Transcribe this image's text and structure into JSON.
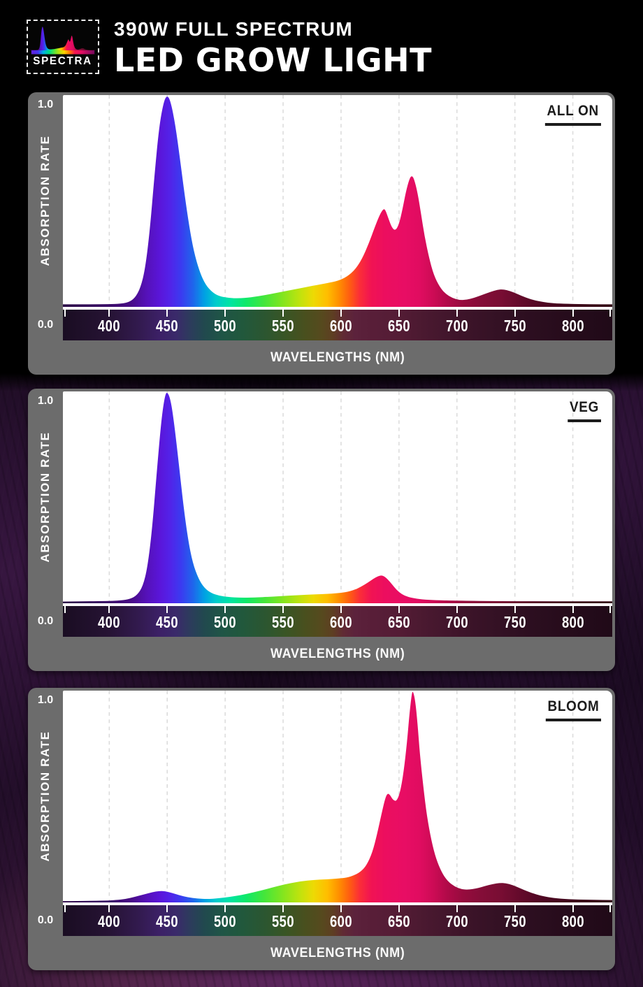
{
  "header": {
    "logo_text": "SPECTRA",
    "title_line1": "390W FULL SPECTRUM",
    "title_line2": "LED GROW LIGHT"
  },
  "axis": {
    "y_label": "ABSORPTION RATE",
    "y_max": "1.0",
    "y_min": "0.0",
    "x_label": "WAVELENGTHS (NM)",
    "x_ticks": [
      400,
      450,
      500,
      550,
      600,
      650,
      700,
      750,
      800
    ],
    "edge_ticks_nm": [
      362,
      832
    ],
    "x_range_nm": [
      360,
      834
    ]
  },
  "colors": {
    "panel_gray": "#6C6C6C",
    "plot_bg": "#FFFFFF",
    "grid_color": "#DADADA",
    "label_dark": "#1C1C1C",
    "text_white": "#FFFFFF",
    "spectrum_gradient": [
      [
        360,
        "#2B0846"
      ],
      [
        400,
        "#3A0A68"
      ],
      [
        418,
        "#470C84"
      ],
      [
        432,
        "#5511B8"
      ],
      [
        444,
        "#5A16DA"
      ],
      [
        452,
        "#5322E8"
      ],
      [
        462,
        "#3B3BF0"
      ],
      [
        472,
        "#2064EC"
      ],
      [
        482,
        "#00A0E4"
      ],
      [
        492,
        "#00CCCC"
      ],
      [
        504,
        "#00E4A4"
      ],
      [
        518,
        "#0FE969"
      ],
      [
        534,
        "#45E63A"
      ],
      [
        550,
        "#84E51E"
      ],
      [
        564,
        "#BEE30E"
      ],
      [
        576,
        "#EDDA04"
      ],
      [
        588,
        "#FFBE00"
      ],
      [
        598,
        "#FF9000"
      ],
      [
        607,
        "#FF5F10"
      ],
      [
        616,
        "#FB2E38"
      ],
      [
        626,
        "#F11353"
      ],
      [
        638,
        "#EC0E5F"
      ],
      [
        655,
        "#E80D64"
      ],
      [
        668,
        "#E00C60"
      ],
      [
        680,
        "#CC0B55"
      ],
      [
        692,
        "#B00A48"
      ],
      [
        705,
        "#970B3E"
      ],
      [
        720,
        "#850D38"
      ],
      [
        738,
        "#780D33"
      ],
      [
        756,
        "#620A2A"
      ],
      [
        775,
        "#4E0722"
      ],
      [
        800,
        "#3E061A"
      ],
      [
        834,
        "#330514"
      ]
    ],
    "band_gradient": [
      [
        360,
        "#1A0D22"
      ],
      [
        400,
        "#261334"
      ],
      [
        425,
        "#321A4E"
      ],
      [
        443,
        "#3C2066"
      ],
      [
        458,
        "#3A2A6A"
      ],
      [
        470,
        "#2C3C5C"
      ],
      [
        482,
        "#21494E"
      ],
      [
        497,
        "#1F5546"
      ],
      [
        515,
        "#21583C"
      ],
      [
        535,
        "#2C5630"
      ],
      [
        553,
        "#3A5524"
      ],
      [
        570,
        "#4A4F1E"
      ],
      [
        583,
        "#564A1E"
      ],
      [
        593,
        "#5E3E22"
      ],
      [
        602,
        "#602A34"
      ],
      [
        612,
        "#5C223C"
      ],
      [
        628,
        "#581E38"
      ],
      [
        650,
        "#541C35"
      ],
      [
        672,
        "#4A1930"
      ],
      [
        698,
        "#40152B"
      ],
      [
        725,
        "#371226"
      ],
      [
        755,
        "#2E0F21"
      ],
      [
        790,
        "#270C1C"
      ],
      [
        834,
        "#200A18"
      ]
    ],
    "logo_bar_gradient": [
      [
        0,
        "#6A1BD8"
      ],
      [
        0.12,
        "#4433EE"
      ],
      [
        0.2,
        "#00AEE8"
      ],
      [
        0.3,
        "#00E07A"
      ],
      [
        0.42,
        "#9CE414"
      ],
      [
        0.52,
        "#FFD400"
      ],
      [
        0.6,
        "#FF7A00"
      ],
      [
        0.68,
        "#F8164E"
      ],
      [
        0.78,
        "#E40E62"
      ],
      [
        0.88,
        "#AA0C60"
      ],
      [
        1,
        "#6E0A5E"
      ]
    ]
  },
  "chart_data": [
    {
      "type": "area",
      "mode_label": "ALL ON",
      "xlabel": "WAVELENGTHS (NM)",
      "ylabel": "ABSORPTION RATE",
      "x_unit": "nm",
      "xlim": [
        360,
        834
      ],
      "ylim": [
        0,
        1
      ],
      "x_ticks": [
        400,
        450,
        500,
        550,
        600,
        650,
        700,
        750,
        800
      ],
      "points": [
        [
          360,
          0.012
        ],
        [
          395,
          0.012
        ],
        [
          408,
          0.014
        ],
        [
          416,
          0.02
        ],
        [
          422,
          0.04
        ],
        [
          427,
          0.09
        ],
        [
          431,
          0.18
        ],
        [
          435,
          0.36
        ],
        [
          439,
          0.62
        ],
        [
          443,
          0.85
        ],
        [
          447,
          0.97
        ],
        [
          450,
          1.0
        ],
        [
          453,
          0.97
        ],
        [
          457,
          0.86
        ],
        [
          461,
          0.7
        ],
        [
          465,
          0.53
        ],
        [
          469,
          0.38
        ],
        [
          473,
          0.26
        ],
        [
          478,
          0.165
        ],
        [
          483,
          0.105
        ],
        [
          489,
          0.068
        ],
        [
          495,
          0.05
        ],
        [
          503,
          0.042
        ],
        [
          512,
          0.04
        ],
        [
          522,
          0.045
        ],
        [
          535,
          0.056
        ],
        [
          548,
          0.07
        ],
        [
          562,
          0.085
        ],
        [
          576,
          0.1
        ],
        [
          588,
          0.112
        ],
        [
          597,
          0.122
        ],
        [
          605,
          0.142
        ],
        [
          612,
          0.175
        ],
        [
          618,
          0.225
        ],
        [
          624,
          0.3
        ],
        [
          629,
          0.375
        ],
        [
          633,
          0.43
        ],
        [
          636,
          0.46
        ],
        [
          638,
          0.462
        ],
        [
          641,
          0.415
        ],
        [
          644,
          0.372
        ],
        [
          647,
          0.36
        ],
        [
          650,
          0.39
        ],
        [
          653,
          0.46
        ],
        [
          656,
          0.545
        ],
        [
          659,
          0.605
        ],
        [
          661,
          0.62
        ],
        [
          663,
          0.605
        ],
        [
          666,
          0.54
        ],
        [
          669,
          0.44
        ],
        [
          672,
          0.335
        ],
        [
          676,
          0.23
        ],
        [
          680,
          0.15
        ],
        [
          685,
          0.095
        ],
        [
          690,
          0.062
        ],
        [
          696,
          0.042
        ],
        [
          702,
          0.032
        ],
        [
          708,
          0.033
        ],
        [
          715,
          0.043
        ],
        [
          722,
          0.057
        ],
        [
          729,
          0.071
        ],
        [
          735,
          0.081
        ],
        [
          740,
          0.083
        ],
        [
          746,
          0.075
        ],
        [
          752,
          0.061
        ],
        [
          759,
          0.045
        ],
        [
          766,
          0.032
        ],
        [
          774,
          0.023
        ],
        [
          783,
          0.017
        ],
        [
          795,
          0.014
        ],
        [
          815,
          0.012
        ],
        [
          834,
          0.012
        ]
      ]
    },
    {
      "type": "area",
      "mode_label": "VEG",
      "xlabel": "WAVELENGTHS (NM)",
      "ylabel": "ABSORPTION RATE",
      "x_unit": "nm",
      "xlim": [
        360,
        834
      ],
      "ylim": [
        0,
        1
      ],
      "x_ticks": [
        400,
        450,
        500,
        550,
        600,
        650,
        700,
        750,
        800
      ],
      "points": [
        [
          360,
          0.008
        ],
        [
          398,
          0.01
        ],
        [
          410,
          0.013
        ],
        [
          418,
          0.02
        ],
        [
          424,
          0.038
        ],
        [
          429,
          0.08
        ],
        [
          433,
          0.17
        ],
        [
          437,
          0.35
        ],
        [
          441,
          0.62
        ],
        [
          445,
          0.87
        ],
        [
          448,
          0.98
        ],
        [
          450,
          1.0
        ],
        [
          453,
          0.96
        ],
        [
          456,
          0.85
        ],
        [
          460,
          0.66
        ],
        [
          464,
          0.46
        ],
        [
          468,
          0.3
        ],
        [
          472,
          0.19
        ],
        [
          477,
          0.115
        ],
        [
          482,
          0.072
        ],
        [
          488,
          0.048
        ],
        [
          495,
          0.035
        ],
        [
          503,
          0.029
        ],
        [
          513,
          0.026
        ],
        [
          525,
          0.027
        ],
        [
          540,
          0.031
        ],
        [
          555,
          0.036
        ],
        [
          570,
          0.04
        ],
        [
          583,
          0.043
        ],
        [
          595,
          0.046
        ],
        [
          604,
          0.052
        ],
        [
          611,
          0.062
        ],
        [
          617,
          0.077
        ],
        [
          623,
          0.097
        ],
        [
          628,
          0.116
        ],
        [
          632,
          0.128
        ],
        [
          635,
          0.132
        ],
        [
          638,
          0.125
        ],
        [
          642,
          0.103
        ],
        [
          646,
          0.075
        ],
        [
          650,
          0.052
        ],
        [
          655,
          0.035
        ],
        [
          661,
          0.025
        ],
        [
          670,
          0.018
        ],
        [
          682,
          0.014
        ],
        [
          700,
          0.012
        ],
        [
          730,
          0.01
        ],
        [
          780,
          0.009
        ],
        [
          834,
          0.009
        ]
      ]
    },
    {
      "type": "area",
      "mode_label": "BLOOM",
      "xlabel": "WAVELENGTHS (NM)",
      "ylabel": "ABSORPTION RATE",
      "x_unit": "nm",
      "xlim": [
        360,
        834
      ],
      "ylim": [
        0,
        1
      ],
      "x_ticks": [
        400,
        450,
        500,
        550,
        600,
        650,
        700,
        750,
        800
      ],
      "points": [
        [
          360,
          0.006
        ],
        [
          395,
          0.008
        ],
        [
          406,
          0.011
        ],
        [
          414,
          0.016
        ],
        [
          422,
          0.026
        ],
        [
          430,
          0.038
        ],
        [
          437,
          0.048
        ],
        [
          443,
          0.054
        ],
        [
          448,
          0.053
        ],
        [
          454,
          0.045
        ],
        [
          461,
          0.033
        ],
        [
          468,
          0.024
        ],
        [
          476,
          0.018
        ],
        [
          485,
          0.016
        ],
        [
          494,
          0.019
        ],
        [
          504,
          0.026
        ],
        [
          514,
          0.035
        ],
        [
          524,
          0.047
        ],
        [
          535,
          0.062
        ],
        [
          546,
          0.078
        ],
        [
          556,
          0.091
        ],
        [
          566,
          0.1
        ],
        [
          576,
          0.106
        ],
        [
          587,
          0.109
        ],
        [
          597,
          0.112
        ],
        [
          605,
          0.117
        ],
        [
          611,
          0.127
        ],
        [
          617,
          0.145
        ],
        [
          622,
          0.175
        ],
        [
          627,
          0.235
        ],
        [
          631,
          0.32
        ],
        [
          635,
          0.42
        ],
        [
          638,
          0.49
        ],
        [
          640,
          0.515
        ],
        [
          642,
          0.51
        ],
        [
          645,
          0.482
        ],
        [
          648,
          0.478
        ],
        [
          651,
          0.52
        ],
        [
          654,
          0.615
        ],
        [
          657,
          0.76
        ],
        [
          659,
          0.89
        ],
        [
          661,
          0.985
        ],
        [
          662,
          1.0
        ],
        [
          664,
          0.955
        ],
        [
          666,
          0.845
        ],
        [
          668,
          0.7
        ],
        [
          671,
          0.545
        ],
        [
          674,
          0.41
        ],
        [
          678,
          0.29
        ],
        [
          682,
          0.205
        ],
        [
          687,
          0.14
        ],
        [
          692,
          0.1
        ],
        [
          698,
          0.075
        ],
        [
          704,
          0.062
        ],
        [
          710,
          0.06
        ],
        [
          717,
          0.066
        ],
        [
          724,
          0.077
        ],
        [
          731,
          0.087
        ],
        [
          737,
          0.092
        ],
        [
          742,
          0.091
        ],
        [
          748,
          0.082
        ],
        [
          754,
          0.068
        ],
        [
          761,
          0.052
        ],
        [
          768,
          0.038
        ],
        [
          776,
          0.027
        ],
        [
          786,
          0.019
        ],
        [
          800,
          0.014
        ],
        [
          818,
          0.012
        ],
        [
          834,
          0.011
        ]
      ]
    }
  ]
}
